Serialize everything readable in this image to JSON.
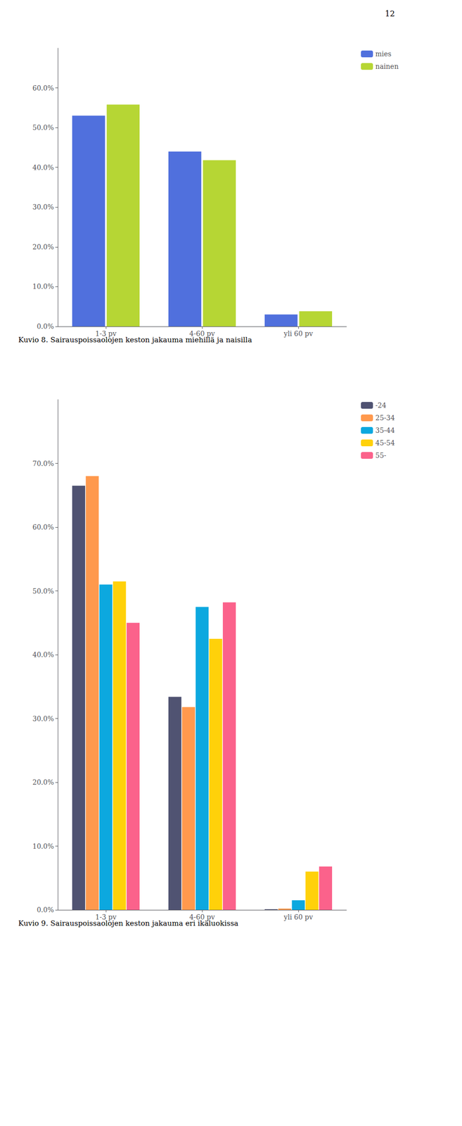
{
  "chart_data": [
    {
      "type": "bar",
      "title": "Kuvio 8. Sairauspoissaolojen keston jakauma miehillä ja naisilla",
      "annotations": [
        "12"
      ],
      "categories": [
        "1-3 pv",
        "4-60 pv",
        "yli 60 pv"
      ],
      "series": [
        {
          "name": "mies",
          "values": [
            0.53,
            0.44,
            0.03
          ]
        },
        {
          "name": "nainen",
          "values": [
            0.558,
            0.418,
            0.038
          ]
        }
      ],
      "ylim": [
        0.0,
        0.7
      ],
      "yticks": [
        {
          "value": 0.0,
          "label": "0.0%"
        },
        {
          "value": 0.1,
          "label": "10.0%"
        },
        {
          "value": 0.2,
          "label": "20.0%"
        },
        {
          "value": 0.3,
          "label": "30.0%"
        },
        {
          "value": 0.4,
          "label": "40.0%"
        },
        {
          "value": 0.5,
          "label": "50.0%"
        },
        {
          "value": 0.6,
          "label": "60.0%"
        }
      ],
      "grid": false,
      "legend": "right"
    },
    {
      "type": "bar",
      "title": "Kuvio 9. Sairauspoissaolojen keston jakauma eri ikäluokissa",
      "categories": [
        "1-3 pv",
        "4-60 pv",
        "yli 60 pv"
      ],
      "series": [
        {
          "name": "-24",
          "values": [
            0.665,
            0.334,
            0.001
          ]
        },
        {
          "name": "25-34",
          "values": [
            0.68,
            0.318,
            0.002
          ]
        },
        {
          "name": "35-44",
          "values": [
            0.51,
            0.475,
            0.015
          ]
        },
        {
          "name": "45-54",
          "values": [
            0.515,
            0.425,
            0.06
          ]
        },
        {
          "name": "55-",
          "values": [
            0.45,
            0.482,
            0.068
          ]
        }
      ],
      "ylim": [
        0.0,
        0.8
      ],
      "yticks": [
        {
          "value": 0.0,
          "label": "0.0%"
        },
        {
          "value": 0.1,
          "label": "10.0%"
        },
        {
          "value": 0.2,
          "label": "20.0%"
        },
        {
          "value": 0.3,
          "label": "30.0%"
        },
        {
          "value": 0.4,
          "label": "40.0%"
        },
        {
          "value": 0.5,
          "label": "50.0%"
        },
        {
          "value": 0.6,
          "label": "60.0%"
        },
        {
          "value": 0.7,
          "label": "70.0%"
        }
      ],
      "grid": false,
      "legend": "right"
    }
  ]
}
